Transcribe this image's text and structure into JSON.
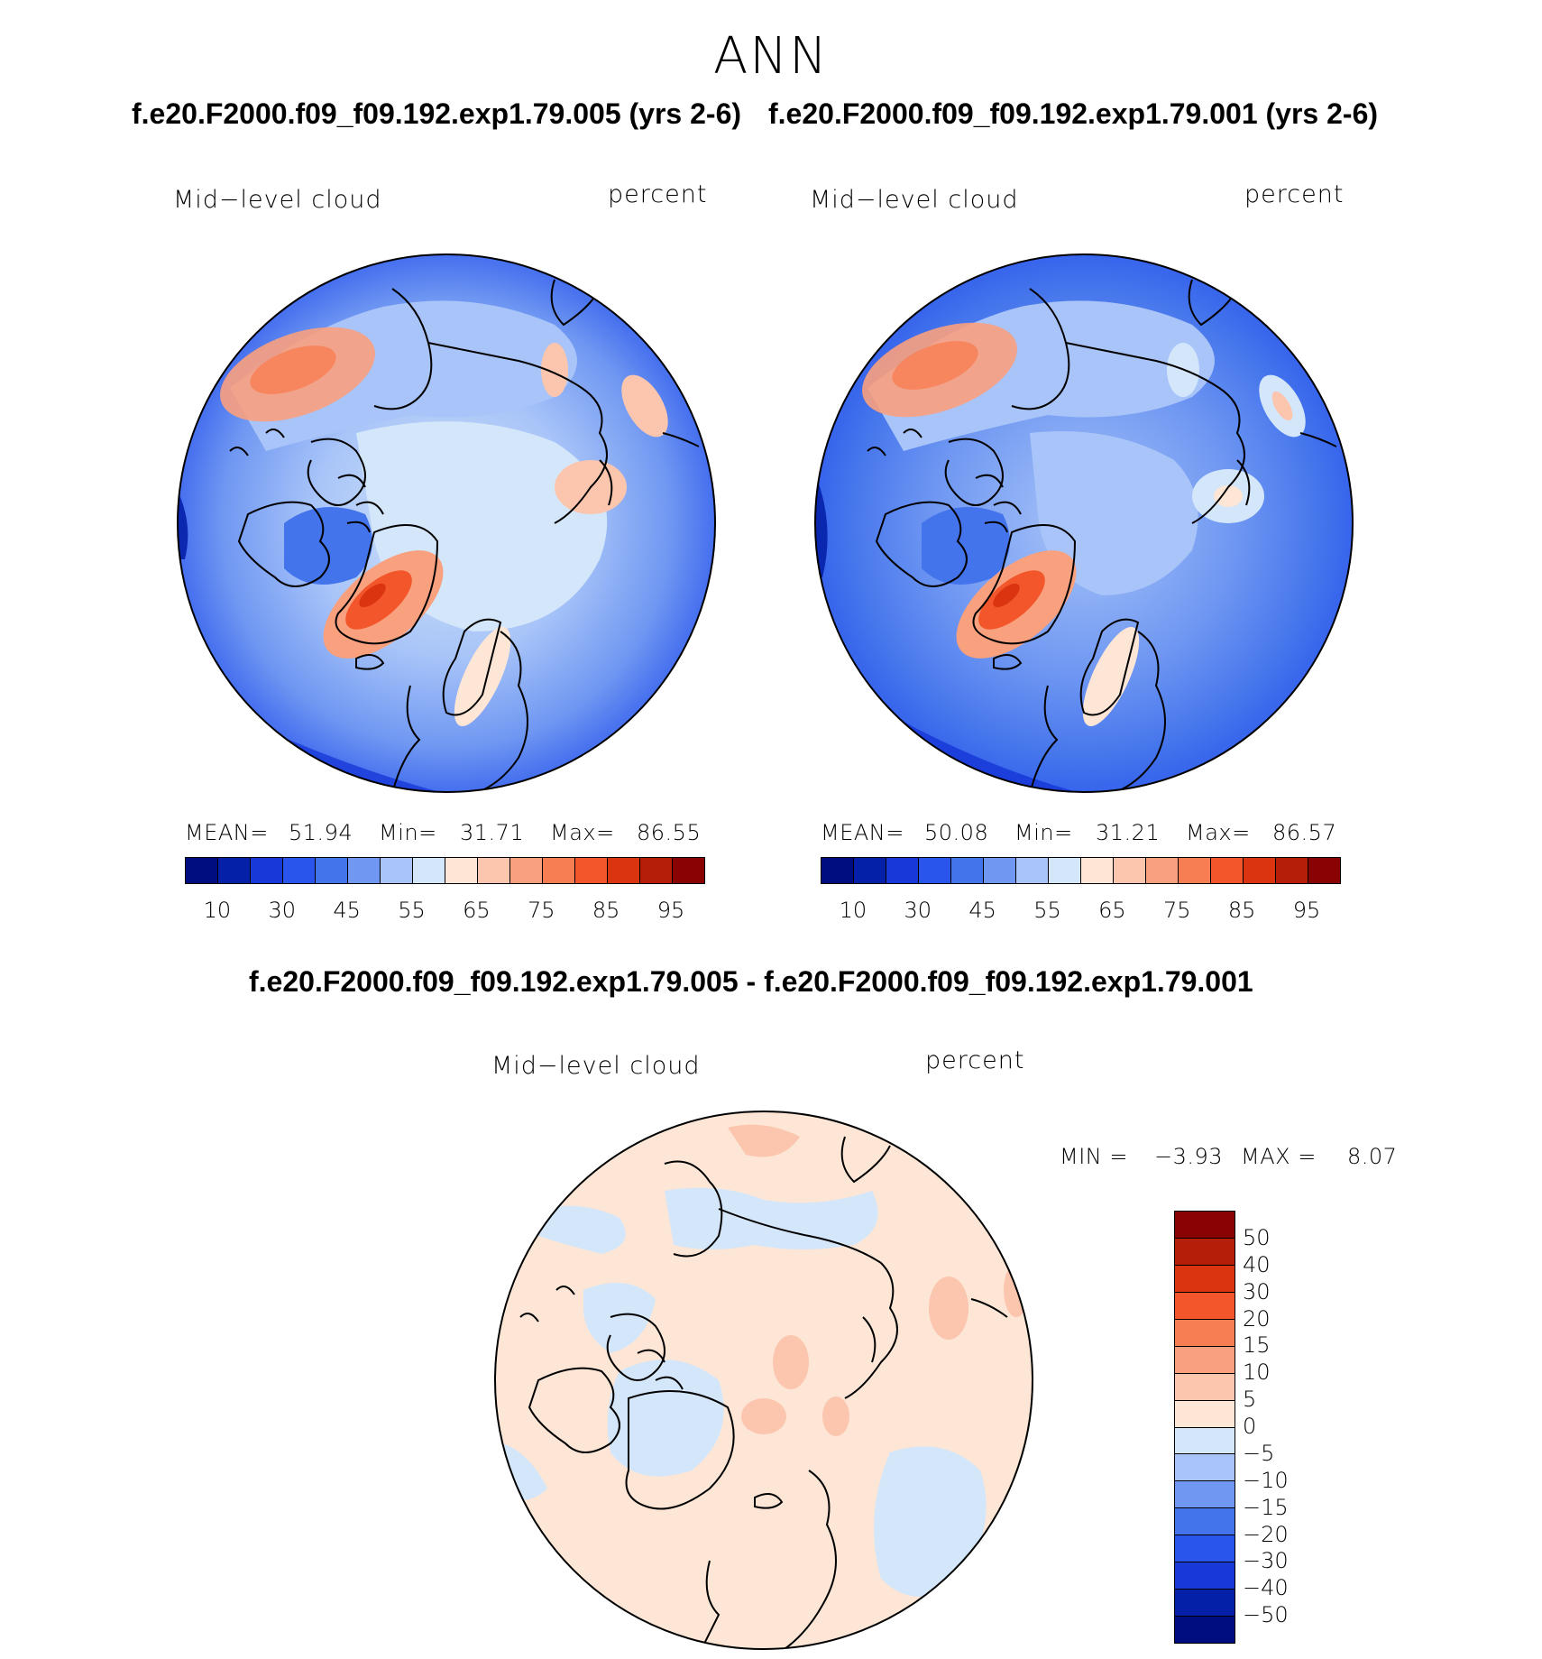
{
  "title": "ANN",
  "panel_left": {
    "case_label": "f.e20.F2000.f09_f09.192.exp1.79.005 (yrs 2-6)",
    "variable": "Mid−level cloud",
    "units": "percent",
    "stats": {
      "mean_label": "MEAN=",
      "mean": "51.94",
      "min_label": "Min=",
      "min": "31.71",
      "max_label": "Max=",
      "max": "86.55"
    }
  },
  "panel_right": {
    "case_label": "f.e20.F2000.f09_f09.192.exp1.79.001 (yrs 2-6)",
    "variable": "Mid−level cloud",
    "units": "percent",
    "stats": {
      "mean_label": "MEAN=",
      "mean": "50.08",
      "min_label": "Min=",
      "min": "31.21",
      "max_label": "Max=",
      "max": "86.57"
    }
  },
  "diff_panel": {
    "title": "f.e20.F2000.f09_f09.192.exp1.79.005 - f.e20.F2000.f09_f09.192.exp1.79.001",
    "variable": "Mid−level cloud",
    "units": "percent",
    "stats": {
      "min_label": "MIN =",
      "min": "−3.93",
      "max_label": "MAX =",
      "max": "8.07"
    }
  },
  "colorbar_main": {
    "ticks": [
      "10",
      "30",
      "45",
      "55",
      "65",
      "75",
      "85",
      "95"
    ],
    "colors": [
      "#000d80",
      "#0520a8",
      "#1838d8",
      "#2a55ec",
      "#4474ec",
      "#7098f2",
      "#a8c4f8",
      "#d4e6fa",
      "#fde6d6",
      "#fcc6ae",
      "#f9a07e",
      "#f77d52",
      "#f2562a",
      "#db3410",
      "#b51e08",
      "#8a0303"
    ]
  },
  "colorbar_diff": {
    "ticks": [
      "50",
      "40",
      "30",
      "20",
      "15",
      "10",
      "5",
      "0",
      "−5",
      "−10",
      "−15",
      "−20",
      "−30",
      "−40",
      "−50"
    ],
    "colors": [
      "#8a0303",
      "#b51e08",
      "#db3410",
      "#f2562a",
      "#f77d52",
      "#f9a07e",
      "#fcc6ae",
      "#fde6d6",
      "#d4e6fa",
      "#a8c4f8",
      "#7098f2",
      "#4474ec",
      "#2a55ec",
      "#1838d8",
      "#0520a8",
      "#000d80"
    ]
  }
}
